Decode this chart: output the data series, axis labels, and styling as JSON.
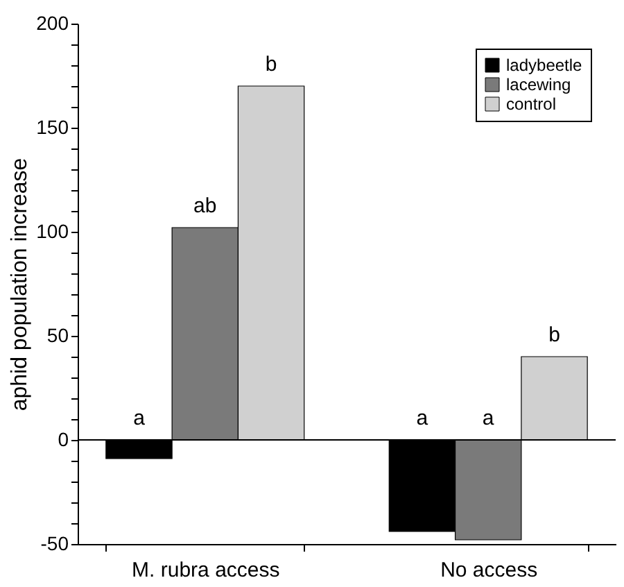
{
  "chart_data": {
    "type": "bar",
    "ylabel": "aphid population increase",
    "categories": [
      "M. rubra access",
      "No access"
    ],
    "series": [
      {
        "name": "ladybeetle",
        "color": "#000000",
        "values": [
          -9,
          -44
        ],
        "value_labels": [
          "a",
          "a"
        ]
      },
      {
        "name": "lacewing",
        "color": "#7a7a7a",
        "values": [
          102,
          -48
        ],
        "value_labels": [
          "ab",
          "a"
        ]
      },
      {
        "name": "control",
        "color": "#d0d0d0",
        "values": [
          170,
          40
        ],
        "value_labels": [
          "b",
          "b"
        ]
      }
    ],
    "ylim": [
      -50,
      200
    ],
    "yticks": [
      -50,
      {
        "value": -40,
        "label": null
      },
      {
        "value": -30,
        "label": null
      },
      {
        "value": -20,
        "label": null
      },
      {
        "value": -10,
        "label": null
      },
      0,
      {
        "value": 10,
        "label": null
      },
      {
        "value": 20,
        "label": null
      },
      {
        "value": 30,
        "label": null
      },
      {
        "value": 40,
        "label": null
      },
      50,
      {
        "value": 60,
        "label": null
      },
      {
        "value": 70,
        "label": null
      },
      {
        "value": 80,
        "label": null
      },
      {
        "value": 90,
        "label": null
      },
      100,
      {
        "value": 110,
        "label": null
      },
      {
        "value": 120,
        "label": null
      },
      {
        "value": 130,
        "label": null
      },
      {
        "value": 140,
        "label": null
      },
      150,
      {
        "value": 160,
        "label": null
      },
      {
        "value": 170,
        "label": null
      },
      {
        "value": 180,
        "label": null
      },
      {
        "value": 190,
        "label": null
      },
      200
    ],
    "ref_lines": [
      {
        "axis": "y",
        "value": 0,
        "color": "#000000"
      }
    ],
    "legend": "top right",
    "grid": false
  }
}
